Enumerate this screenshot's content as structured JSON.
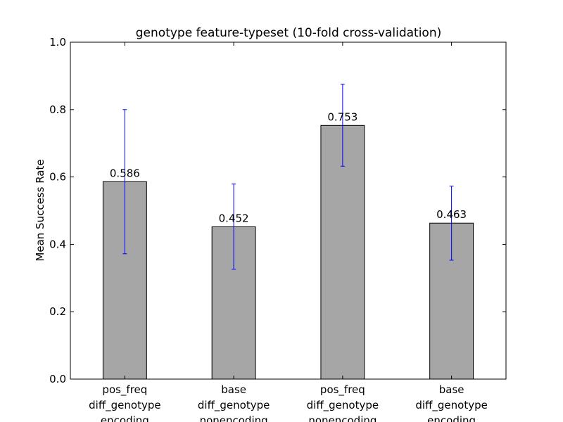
{
  "chart_data": {
    "type": "bar",
    "title": "genotype feature-typeset (10-fold cross-validation)",
    "xlabel": "",
    "ylabel": "Mean Success Rate",
    "ylim": [
      0.0,
      1.0
    ],
    "yticks": [
      "0.0",
      "0.2",
      "0.4",
      "0.6",
      "0.8",
      "1.0"
    ],
    "categories": [
      [
        "pos_freq",
        "diff_genotype",
        "encoding"
      ],
      [
        "base",
        "diff_genotype",
        "nonencoding"
      ],
      [
        "pos_freq",
        "diff_genotype",
        "nonencoding"
      ],
      [
        "base",
        "diff_genotype",
        "encoding"
      ]
    ],
    "values": [
      0.586,
      0.452,
      0.753,
      0.463
    ],
    "value_labels": [
      "0.586",
      "0.452",
      "0.753",
      "0.463"
    ],
    "error_low": [
      0.372,
      0.326,
      0.632,
      0.353
    ],
    "error_high": [
      0.8,
      0.579,
      0.875,
      0.573
    ],
    "grid": false,
    "bar_color": "#a6a6a6",
    "error_color": "#0000ff"
  }
}
